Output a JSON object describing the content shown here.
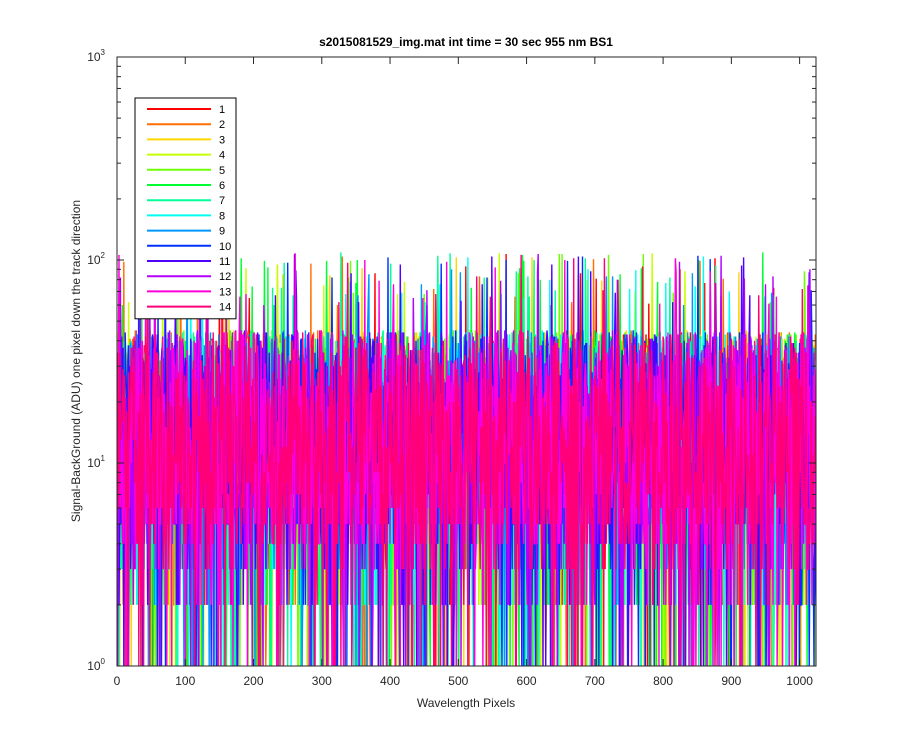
{
  "chart_data": {
    "type": "line",
    "title": "s2015081529_img.mat int time = 30 sec  955 nm BS1",
    "xlabel": "Wavelength Pixels",
    "ylabel": "Signal-BackGround (ADU) one pixel down the track direction",
    "x_range": [
      0,
      1024
    ],
    "y_range": [
      1,
      1000
    ],
    "y_scale": "log",
    "x_ticks": [
      "0",
      "100",
      "200",
      "300",
      "400",
      "500",
      "600",
      "700",
      "800",
      "900",
      "1000"
    ],
    "y_ticks": [
      {
        "base": "10",
        "exp": "0"
      },
      {
        "base": "10",
        "exp": "1"
      },
      {
        "base": "10",
        "exp": "2"
      },
      {
        "base": "10",
        "exp": "3"
      }
    ],
    "grid": false,
    "legend_placement": "top-left",
    "series": [
      {
        "name": "1",
        "color": "#ff0000"
      },
      {
        "name": "2",
        "color": "#ff6e00"
      },
      {
        "name": "3",
        "color": "#ffd700"
      },
      {
        "name": "4",
        "color": "#c8ff00"
      },
      {
        "name": "5",
        "color": "#6eff00"
      },
      {
        "name": "6",
        "color": "#00ff32"
      },
      {
        "name": "7",
        "color": "#00ff96"
      },
      {
        "name": "8",
        "color": "#00fff0"
      },
      {
        "name": "9",
        "color": "#0096ff"
      },
      {
        "name": "10",
        "color": "#0032ff"
      },
      {
        "name": "11",
        "color": "#5000ff"
      },
      {
        "name": "12",
        "color": "#b400ff"
      },
      {
        "name": "13",
        "color": "#ff00dc"
      },
      {
        "name": "14",
        "color": "#ff0078"
      }
    ],
    "data_note": "Each series: noisy signal across wavelength pixels 1–1024, values mostly between 2 and 60 ADU, with sporadic drops to 1 and peaks up to ~110 ADU."
  }
}
